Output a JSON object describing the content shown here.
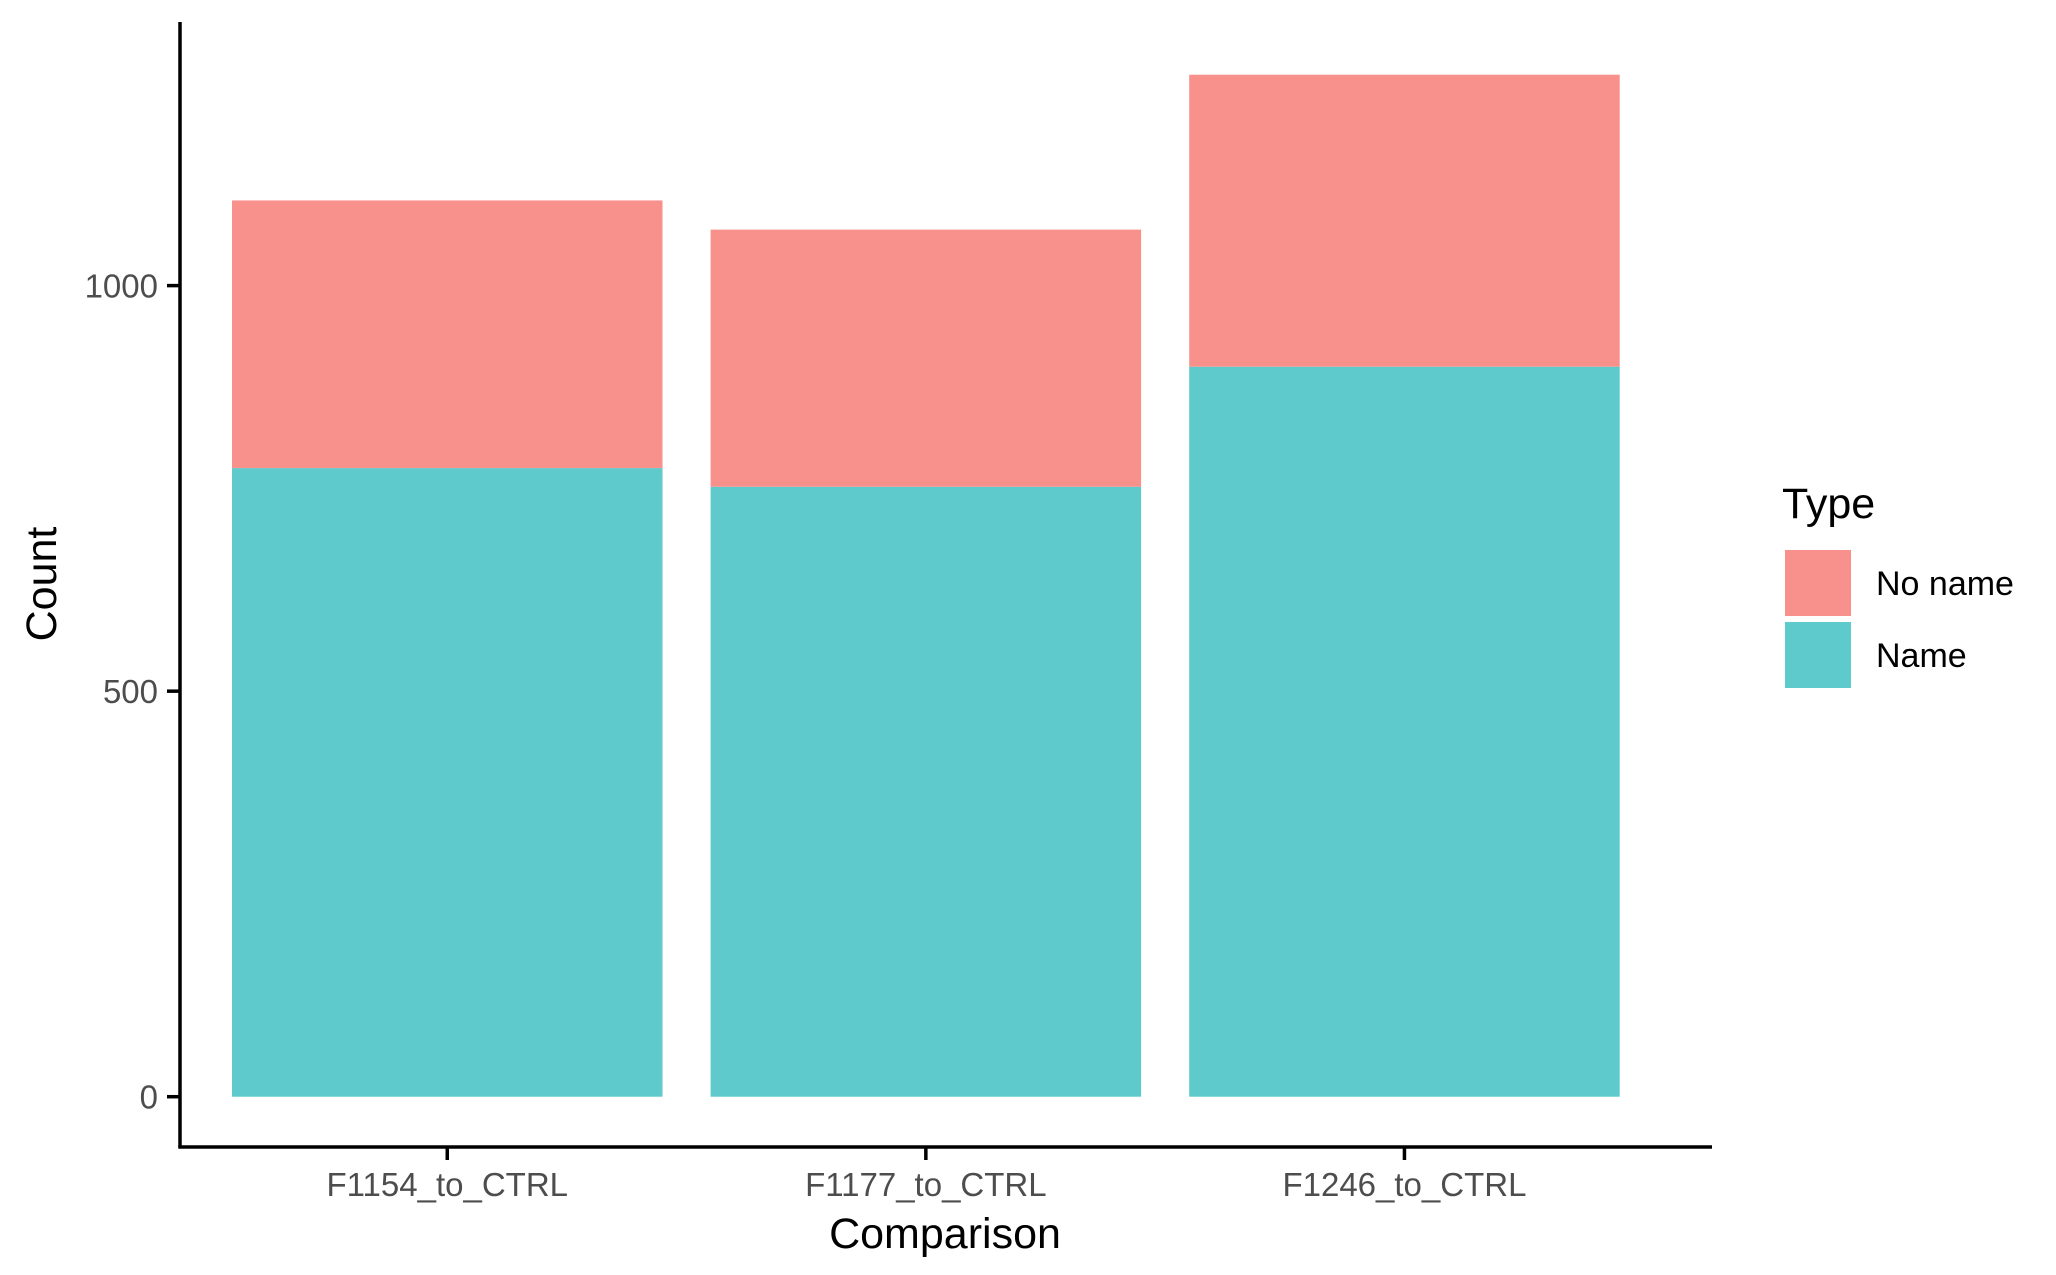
{
  "chart_data": {
    "type": "bar",
    "stacked": true,
    "categories": [
      "F1154_to_CTRL",
      "F1177_to_CTRL",
      "F1246_to_CTRL"
    ],
    "series": [
      {
        "name": "Name",
        "color": "#5ECACC",
        "values": [
          775,
          752,
          900
        ]
      },
      {
        "name": "No name",
        "color": "#F8908C",
        "values": [
          330,
          317,
          360
        ]
      }
    ],
    "xlabel": "Comparison",
    "ylabel": "Count",
    "yticks": [
      0,
      500,
      1000
    ],
    "ylim": [
      -62,
      1325
    ],
    "grid": false,
    "legend": {
      "title": "Type",
      "position": "right",
      "order": [
        "No name",
        "Name"
      ]
    }
  }
}
